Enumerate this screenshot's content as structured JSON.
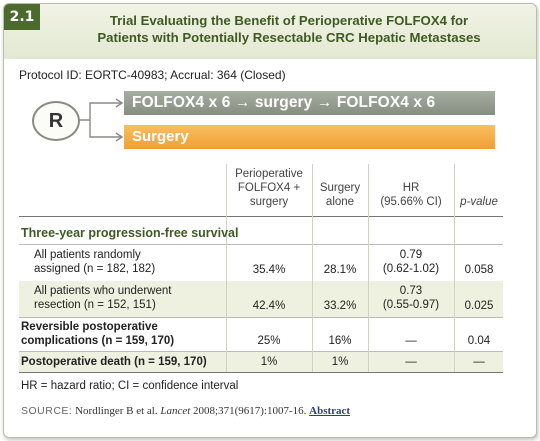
{
  "badge": "2.1",
  "title_line1": "Trial Evaluating the Benefit of Perioperative FOLFOX4 for",
  "title_line2": "Patients with Potentially Resectable CRC Hepatic Metastases",
  "protocol": "Protocol ID: EORTC-40983; Accrual: 364 (Closed)",
  "randomization": "R",
  "arms": [
    "FOLFOX4 x 6 → surgery → FOLFOX4 x 6",
    "Surgery"
  ],
  "colors": {
    "badge": "#4c6a2e",
    "title": "#3e5a22",
    "arm1": "#959d91",
    "arm2": "#f4ae46",
    "band": "#eef1df"
  },
  "columns": {
    "periop": [
      "Perioperative",
      "FOLFOX4 +",
      "surgery"
    ],
    "surgery": [
      "Surgery",
      "alone"
    ],
    "hr": [
      "HR",
      "(95.66% CI)"
    ],
    "pvalue": "p-value"
  },
  "section": "Three-year progression-free survival",
  "rows": [
    {
      "label": [
        "All patients randomly",
        "assigned (n = 182, 182)"
      ],
      "periop": "35.4%",
      "surgery": "28.1%",
      "hr": [
        "0.79",
        "(0.62-1.02)"
      ],
      "p": "0.058"
    },
    {
      "label": [
        "All patients who underwent",
        "resection (n = 152, 151)"
      ],
      "periop": "42.4%",
      "surgery": "33.2%",
      "hr": [
        "0.73",
        "(0.55-0.97)"
      ],
      "p": "0.025"
    },
    {
      "label": [
        "Reversible postoperative",
        "complications (n = 159, 170)"
      ],
      "periop": "25%",
      "surgery": "16%",
      "hr": [
        "—"
      ],
      "p": "0.04"
    },
    {
      "label": [
        "Postoperative death (n = 159, 170)"
      ],
      "periop": "1%",
      "surgery": "1%",
      "hr": [
        "—"
      ],
      "p": "—"
    }
  ],
  "legend": "HR = hazard ratio; CI = confidence interval",
  "source": {
    "label": "SOURCE:",
    "authors": "Nordlinger B et al.",
    "journal": "Lancet",
    "citation": "2008;371(9617):1007-16.",
    "link": "Abstract"
  }
}
